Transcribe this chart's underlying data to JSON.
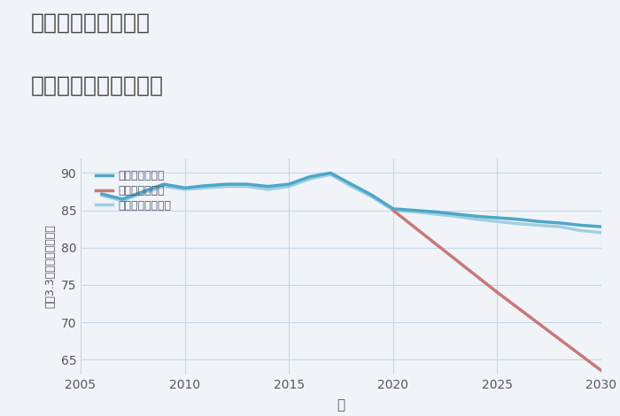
{
  "title_line1": "埼玉県鴻巣市登戸の",
  "title_line2": "中古戸建ての価格推移",
  "xlabel": "年",
  "ylabel": "坪（3.3㎡）単価（万円）",
  "background_color": "#f0f4f8",
  "plot_bg_color": "#f0f4f8",
  "xlim": [
    2005,
    2030
  ],
  "ylim": [
    63,
    92
  ],
  "yticks": [
    65,
    70,
    75,
    80,
    85,
    90
  ],
  "xticks": [
    2005,
    2010,
    2015,
    2020,
    2025,
    2030
  ],
  "good_scenario": {
    "x": [
      2006,
      2007,
      2008,
      2009,
      2010,
      2011,
      2012,
      2013,
      2014,
      2015,
      2016,
      2017,
      2018,
      2019,
      2020,
      2021,
      2022,
      2023,
      2024,
      2025,
      2026,
      2027,
      2028,
      2029,
      2030
    ],
    "y": [
      87.2,
      86.5,
      87.5,
      88.5,
      88.0,
      88.3,
      88.5,
      88.5,
      88.2,
      88.5,
      89.5,
      90.0,
      88.5,
      87.0,
      85.2,
      85.0,
      84.8,
      84.5,
      84.2,
      84.0,
      83.8,
      83.5,
      83.3,
      83.0,
      82.8
    ],
    "color": "#4da6c8",
    "linewidth": 2.5,
    "label": "グッドシナリオ"
  },
  "bad_scenario": {
    "x": [
      2020,
      2025,
      2030
    ],
    "y": [
      85.0,
      74.0,
      63.5
    ],
    "color": "#c87878",
    "linewidth": 2.5,
    "label": "バッドシナリオ"
  },
  "normal_scenario": {
    "x": [
      2006,
      2007,
      2008,
      2009,
      2010,
      2011,
      2012,
      2013,
      2014,
      2015,
      2016,
      2017,
      2018,
      2019,
      2020,
      2021,
      2022,
      2023,
      2024,
      2025,
      2026,
      2027,
      2028,
      2029,
      2030
    ],
    "y": [
      87.0,
      86.3,
      87.3,
      88.2,
      87.8,
      88.0,
      88.2,
      88.2,
      87.8,
      88.2,
      89.2,
      89.8,
      88.2,
      86.8,
      85.0,
      84.8,
      84.5,
      84.2,
      83.8,
      83.5,
      83.2,
      83.0,
      82.8,
      82.3,
      82.0
    ],
    "color": "#a0cfe0",
    "linewidth": 2.5,
    "label": "ノーマルシナリオ"
  },
  "grid_color": "#c8d8e8",
  "title_color": "#444444",
  "tick_color": "#555566"
}
